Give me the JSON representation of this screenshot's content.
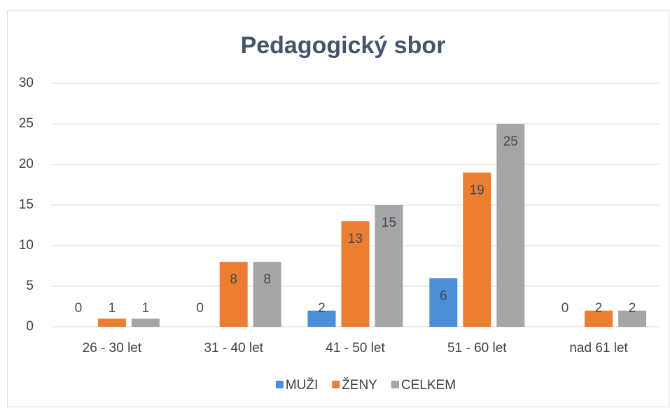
{
  "chart_data": {
    "type": "bar",
    "title": "Pedagogický sbor",
    "categories": [
      "26 - 30 let",
      "31 - 40 let",
      "41 - 50 let",
      "51 - 60 let",
      "nad 61 let"
    ],
    "series": [
      {
        "name": "MUŽI",
        "color": "#4a8fd8",
        "values": [
          0,
          0,
          2,
          6,
          0
        ]
      },
      {
        "name": "ŽENY",
        "color": "#ed7d31",
        "values": [
          1,
          8,
          13,
          19,
          2
        ]
      },
      {
        "name": "CELKEM",
        "color": "#a5a5a5",
        "values": [
          1,
          8,
          15,
          25,
          2
        ]
      }
    ],
    "ylim": [
      0,
      30
    ],
    "yticks": [
      0,
      5,
      10,
      15,
      20,
      25,
      30
    ],
    "grid": true,
    "legend": "bottom"
  }
}
